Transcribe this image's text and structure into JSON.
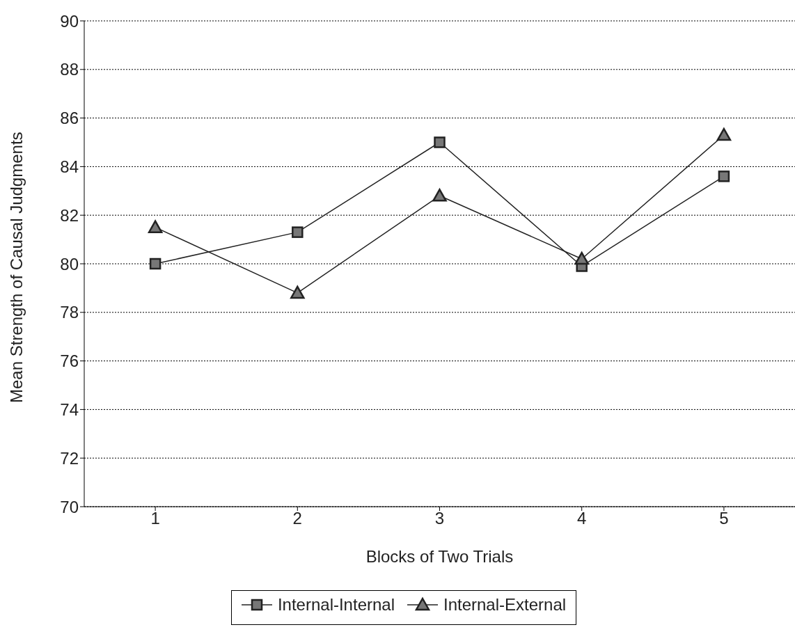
{
  "chart_data": {
    "type": "line",
    "xlabel": "Blocks of Two Trials",
    "ylabel": "Mean Strength of Causal Judgments",
    "categories": [
      "1",
      "2",
      "3",
      "4",
      "5"
    ],
    "series": [
      {
        "name": "Internal-Internal",
        "color": "#222222",
        "marker": "square",
        "values": [
          80.0,
          81.3,
          85.0,
          79.9,
          83.6
        ]
      },
      {
        "name": "Internal-External",
        "color": "#222222",
        "marker": "triangle",
        "values": [
          81.5,
          78.8,
          82.8,
          80.2,
          85.3
        ]
      }
    ],
    "ylim": [
      70,
      90
    ],
    "yticks": [
      70,
      72,
      74,
      76,
      78,
      80,
      82,
      84,
      86,
      88,
      90
    ],
    "grid": "y",
    "legend": "bottom",
    "line_style": "solid"
  }
}
